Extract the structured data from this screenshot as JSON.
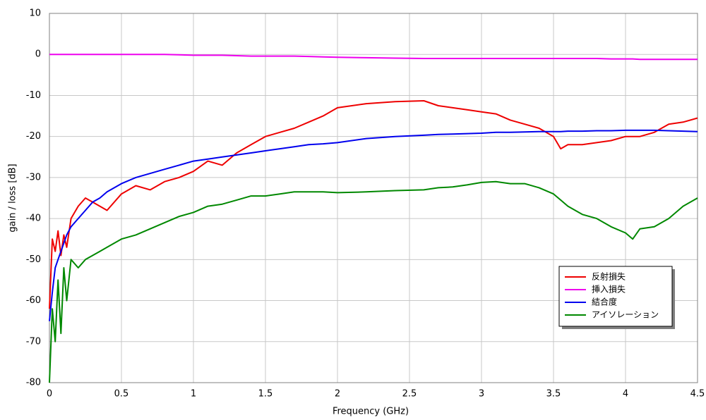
{
  "chart_data": {
    "type": "line",
    "xlabel": "Frequency (GHz)",
    "ylabel": "gain / loss [dB]",
    "x": [
      0,
      0.02,
      0.04,
      0.06,
      0.08,
      0.1,
      0.12,
      0.15,
      0.2,
      0.25,
      0.3,
      0.35,
      0.4,
      0.5,
      0.6,
      0.7,
      0.8,
      0.9,
      1.0,
      1.1,
      1.2,
      1.3,
      1.4,
      1.5,
      1.6,
      1.7,
      1.8,
      1.9,
      2.0,
      2.2,
      2.4,
      2.6,
      2.7,
      2.8,
      2.9,
      3.0,
      3.1,
      3.2,
      3.3,
      3.4,
      3.5,
      3.55,
      3.6,
      3.7,
      3.8,
      3.9,
      4.0,
      4.05,
      4.1,
      4.2,
      4.3,
      4.4,
      4.5
    ],
    "series": [
      {
        "name": "反射損失",
        "color": "#ee0000",
        "values": [
          -62,
          -45,
          -48,
          -43,
          -49,
          -44,
          -47,
          -40,
          -37,
          -35,
          -36,
          -37,
          -38,
          -34,
          -32,
          -33,
          -31,
          -30,
          -28.5,
          -26,
          -27,
          -24,
          -22,
          -20,
          -19,
          -18,
          -16.5,
          -15,
          -13,
          -12,
          -11.5,
          -11.3,
          -12.5,
          -13,
          -13.5,
          -14,
          -14.5,
          -16,
          -17,
          -18,
          -20,
          -23,
          -22,
          -22,
          -21.5,
          -21,
          -20,
          -20,
          -20,
          -19,
          -17,
          -16.5,
          -15.5
        ]
      },
      {
        "name": "挿入損失",
        "color": "#ee00ee",
        "values": [
          0,
          0,
          0,
          0,
          0,
          0,
          0,
          0,
          0,
          0,
          0,
          0,
          0,
          0,
          0,
          0,
          0,
          -0.1,
          -0.2,
          -0.2,
          -0.2,
          -0.3,
          -0.4,
          -0.4,
          -0.4,
          -0.4,
          -0.5,
          -0.6,
          -0.7,
          -0.8,
          -0.9,
          -1,
          -1,
          -1,
          -1,
          -1,
          -1,
          -1,
          -1,
          -1,
          -1,
          -1,
          -1,
          -1,
          -1,
          -1.1,
          -1.1,
          -1.1,
          -1.2,
          -1.2,
          -1.2,
          -1.2,
          -1.2
        ]
      },
      {
        "name": "結合度",
        "color": "#0000ee",
        "values": [
          -65,
          -58,
          -52,
          -50,
          -48,
          -46,
          -44,
          -42,
          -40,
          -38,
          -36,
          -35,
          -33.5,
          -31.5,
          -30,
          -29,
          -28,
          -27,
          -26,
          -25.5,
          -25,
          -24.5,
          -24,
          -23.5,
          -23,
          -22.5,
          -22,
          -21.8,
          -21.5,
          -20.5,
          -20,
          -19.7,
          -19.5,
          -19.4,
          -19.3,
          -19.2,
          -19,
          -19,
          -18.9,
          -18.8,
          -18.8,
          -18.8,
          -18.7,
          -18.7,
          -18.6,
          -18.6,
          -18.5,
          -18.5,
          -18.5,
          -18.5,
          -18.6,
          -18.7,
          -18.8
        ]
      },
      {
        "name": "アイソレーション",
        "color": "#008800",
        "values": [
          -80,
          -62,
          -70,
          -55,
          -68,
          -52,
          -60,
          -50,
          -52,
          -50,
          -49,
          -48,
          -47,
          -45,
          -44,
          -42.5,
          -41,
          -39.5,
          -38.5,
          -37,
          -36.5,
          -35.5,
          -34.5,
          -34.5,
          -34,
          -33.5,
          -33.5,
          -33.5,
          -33.7,
          -33.5,
          -33.2,
          -33,
          -32.5,
          -32.3,
          -31.8,
          -31.2,
          -31,
          -31.5,
          -31.5,
          -32.5,
          -34,
          -35.5,
          -37,
          -39,
          -40,
          -42,
          -43.5,
          -45,
          -42.5,
          -42,
          -40,
          -37,
          -35
        ]
      }
    ],
    "xlim": [
      0,
      4.5
    ],
    "xticks": [
      0,
      0.5,
      1,
      1.5,
      2,
      2.5,
      3,
      3.5,
      4,
      4.5
    ],
    "ylim": [
      -80,
      10
    ],
    "yticks": [
      10,
      0,
      -10,
      -20,
      -30,
      -40,
      -50,
      -60,
      -70,
      -80
    ],
    "grid": true,
    "legend": "lower right"
  }
}
